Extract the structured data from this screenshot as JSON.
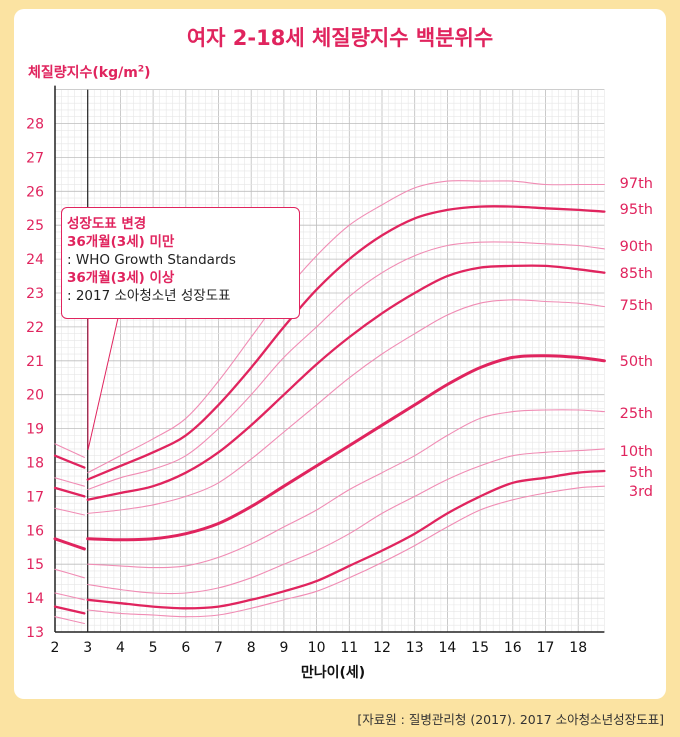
{
  "title": "여자 2-18세 체질량지수 백분위수",
  "ylabel_text": "체질량지수(kg/m",
  "ylabel_sup": "2",
  "ylabel_close": ")",
  "xlabel": "만나이(세)",
  "source": "[자료원 : 질병관리청 (2017). 2017 소아청소년성장도표]",
  "note": {
    "line1": "성장도표 변경",
    "line2": "36개월(3세) 미만",
    "line3": ": WHO Growth Standards",
    "line4": "36개월(3세) 이상",
    "line5": ": 2017 소아청소년 성장도표"
  },
  "colors": {
    "accent": "#e0245e",
    "thin_line": "#f08cb4",
    "background": "#fbe3a2",
    "grid_minor": "#e6e6e6",
    "grid_major": "#bdbdbd"
  },
  "chart_data": {
    "type": "line",
    "xlabel": "만나이(세)",
    "ylabel": "체질량지수(kg/m²)",
    "xlim": [
      2,
      18.8
    ],
    "ylim": [
      13,
      29
    ],
    "x_ticks": [
      2,
      3,
      4,
      5,
      6,
      7,
      8,
      9,
      10,
      11,
      12,
      13,
      14,
      15,
      16,
      17,
      18
    ],
    "y_ticks": [
      13,
      14,
      15,
      16,
      17,
      18,
      19,
      20,
      21,
      22,
      23,
      24,
      25,
      26,
      27,
      28
    ],
    "grid": true,
    "legend": "right (percentile labels at line ends)",
    "series": [
      {
        "name": "97th",
        "weight": "thin",
        "who": [
          [
            2,
            18.55
          ],
          [
            2.9,
            18.15
          ]
        ],
        "points": [
          [
            3,
            17.7
          ],
          [
            4,
            18.2
          ],
          [
            5,
            18.7
          ],
          [
            6,
            19.3
          ],
          [
            7,
            20.4
          ],
          [
            8,
            21.7
          ],
          [
            9,
            23.0
          ],
          [
            10,
            24.1
          ],
          [
            11,
            25.0
          ],
          [
            12,
            25.6
          ],
          [
            13,
            26.1
          ],
          [
            14,
            26.3
          ],
          [
            15,
            26.3
          ],
          [
            16,
            26.3
          ],
          [
            17,
            26.2
          ],
          [
            18,
            26.2
          ],
          [
            18.8,
            26.2
          ]
        ]
      },
      {
        "name": "95th",
        "weight": "bold",
        "who": [
          [
            2,
            18.2
          ],
          [
            2.9,
            17.85
          ]
        ],
        "points": [
          [
            3,
            17.5
          ],
          [
            4,
            17.9
          ],
          [
            5,
            18.3
          ],
          [
            6,
            18.8
          ],
          [
            7,
            19.7
          ],
          [
            8,
            20.8
          ],
          [
            9,
            22.0
          ],
          [
            10,
            23.1
          ],
          [
            11,
            24.0
          ],
          [
            12,
            24.7
          ],
          [
            13,
            25.2
          ],
          [
            14,
            25.45
          ],
          [
            15,
            25.55
          ],
          [
            16,
            25.55
          ],
          [
            17,
            25.5
          ],
          [
            18,
            25.45
          ],
          [
            18.8,
            25.4
          ]
        ]
      },
      {
        "name": "90th",
        "weight": "thin",
        "who": [
          [
            2,
            17.55
          ],
          [
            2.9,
            17.3
          ]
        ],
        "points": [
          [
            3,
            17.2
          ],
          [
            4,
            17.55
          ],
          [
            5,
            17.8
          ],
          [
            6,
            18.2
          ],
          [
            7,
            19.0
          ],
          [
            8,
            20.0
          ],
          [
            9,
            21.1
          ],
          [
            10,
            22.0
          ],
          [
            11,
            22.9
          ],
          [
            12,
            23.6
          ],
          [
            13,
            24.1
          ],
          [
            14,
            24.4
          ],
          [
            15,
            24.5
          ],
          [
            16,
            24.5
          ],
          [
            17,
            24.45
          ],
          [
            18,
            24.4
          ],
          [
            18.8,
            24.3
          ]
        ]
      },
      {
        "name": "85th",
        "weight": "bold",
        "who": [
          [
            2,
            17.25
          ],
          [
            2.9,
            17.0
          ]
        ],
        "points": [
          [
            3,
            16.9
          ],
          [
            4,
            17.1
          ],
          [
            5,
            17.3
          ],
          [
            6,
            17.7
          ],
          [
            7,
            18.3
          ],
          [
            8,
            19.1
          ],
          [
            9,
            20.0
          ],
          [
            10,
            20.9
          ],
          [
            11,
            21.7
          ],
          [
            12,
            22.4
          ],
          [
            13,
            23.0
          ],
          [
            14,
            23.5
          ],
          [
            15,
            23.75
          ],
          [
            16,
            23.8
          ],
          [
            17,
            23.8
          ],
          [
            18,
            23.7
          ],
          [
            18.8,
            23.6
          ]
        ]
      },
      {
        "name": "75th",
        "weight": "thin",
        "who": [
          [
            2,
            16.65
          ],
          [
            2.9,
            16.45
          ]
        ],
        "points": [
          [
            3,
            16.5
          ],
          [
            4,
            16.6
          ],
          [
            5,
            16.75
          ],
          [
            6,
            17.0
          ],
          [
            7,
            17.4
          ],
          [
            8,
            18.1
          ],
          [
            9,
            18.9
          ],
          [
            10,
            19.7
          ],
          [
            11,
            20.5
          ],
          [
            12,
            21.2
          ],
          [
            13,
            21.8
          ],
          [
            14,
            22.35
          ],
          [
            15,
            22.7
          ],
          [
            16,
            22.8
          ],
          [
            17,
            22.75
          ],
          [
            18,
            22.7
          ],
          [
            18.8,
            22.6
          ]
        ]
      },
      {
        "name": "50th",
        "weight": "extra-bold",
        "who": [
          [
            2,
            15.75
          ],
          [
            2.9,
            15.45
          ]
        ],
        "points": [
          [
            3,
            15.75
          ],
          [
            4,
            15.72
          ],
          [
            5,
            15.75
          ],
          [
            6,
            15.9
          ],
          [
            7,
            16.2
          ],
          [
            8,
            16.7
          ],
          [
            9,
            17.3
          ],
          [
            10,
            17.9
          ],
          [
            11,
            18.5
          ],
          [
            12,
            19.1
          ],
          [
            13,
            19.7
          ],
          [
            14,
            20.3
          ],
          [
            15,
            20.8
          ],
          [
            16,
            21.1
          ],
          [
            17,
            21.15
          ],
          [
            18,
            21.1
          ],
          [
            18.8,
            21.0
          ]
        ]
      },
      {
        "name": "25th",
        "weight": "thin",
        "who": [
          [
            2,
            14.85
          ],
          [
            2.9,
            14.6
          ]
        ],
        "points": [
          [
            3,
            15.0
          ],
          [
            4,
            14.95
          ],
          [
            5,
            14.9
          ],
          [
            6,
            14.95
          ],
          [
            7,
            15.2
          ],
          [
            8,
            15.6
          ],
          [
            9,
            16.1
          ],
          [
            10,
            16.6
          ],
          [
            11,
            17.2
          ],
          [
            12,
            17.7
          ],
          [
            13,
            18.2
          ],
          [
            14,
            18.8
          ],
          [
            15,
            19.3
          ],
          [
            16,
            19.5
          ],
          [
            17,
            19.55
          ],
          [
            18,
            19.55
          ],
          [
            18.8,
            19.5
          ]
        ]
      },
      {
        "name": "10th",
        "weight": "thin",
        "who": [
          [
            2,
            14.15
          ],
          [
            2.9,
            13.95
          ]
        ],
        "points": [
          [
            3,
            14.4
          ],
          [
            4,
            14.25
          ],
          [
            5,
            14.15
          ],
          [
            6,
            14.15
          ],
          [
            7,
            14.3
          ],
          [
            8,
            14.6
          ],
          [
            9,
            15.0
          ],
          [
            10,
            15.4
          ],
          [
            11,
            15.9
          ],
          [
            12,
            16.5
          ],
          [
            13,
            17.0
          ],
          [
            14,
            17.5
          ],
          [
            15,
            17.9
          ],
          [
            16,
            18.2
          ],
          [
            17,
            18.3
          ],
          [
            18,
            18.35
          ],
          [
            18.8,
            18.4
          ]
        ]
      },
      {
        "name": "5th",
        "weight": "bold",
        "who": [
          [
            2,
            13.75
          ],
          [
            2.9,
            13.55
          ]
        ],
        "points": [
          [
            3,
            13.95
          ],
          [
            4,
            13.85
          ],
          [
            5,
            13.75
          ],
          [
            6,
            13.7
          ],
          [
            7,
            13.75
          ],
          [
            8,
            13.95
          ],
          [
            9,
            14.2
          ],
          [
            10,
            14.5
          ],
          [
            11,
            14.95
          ],
          [
            12,
            15.4
          ],
          [
            13,
            15.9
          ],
          [
            14,
            16.5
          ],
          [
            15,
            17.0
          ],
          [
            16,
            17.4
          ],
          [
            17,
            17.55
          ],
          [
            18,
            17.7
          ],
          [
            18.8,
            17.75
          ]
        ]
      },
      {
        "name": "3rd",
        "weight": "thin",
        "who": [
          [
            2,
            13.45
          ],
          [
            2.9,
            13.25
          ]
        ],
        "points": [
          [
            3,
            13.65
          ],
          [
            4,
            13.55
          ],
          [
            5,
            13.5
          ],
          [
            6,
            13.45
          ],
          [
            7,
            13.5
          ],
          [
            8,
            13.7
          ],
          [
            9,
            13.95
          ],
          [
            10,
            14.2
          ],
          [
            11,
            14.6
          ],
          [
            12,
            15.05
          ],
          [
            13,
            15.55
          ],
          [
            14,
            16.1
          ],
          [
            15,
            16.6
          ],
          [
            16,
            16.9
          ],
          [
            17,
            17.1
          ],
          [
            18,
            17.25
          ],
          [
            18.8,
            17.3
          ]
        ]
      }
    ]
  }
}
